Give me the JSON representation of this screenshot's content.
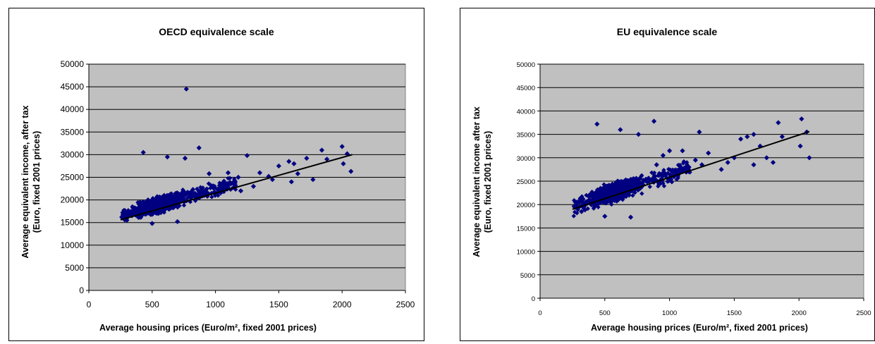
{
  "chart_data": [
    {
      "type": "scatter",
      "title": "OECD equivalence scale",
      "xlabel": "Average housing prices (Euro/m², fixed 2001 prices)",
      "ylabel_line1": "Average equivalent income, after tax",
      "ylabel_line2": "(Euro, fixed 2001 prices)",
      "xlim": [
        0,
        2500
      ],
      "ylim": [
        0,
        50000
      ],
      "xticks": [
        "0",
        "500",
        "1000",
        "1500",
        "2000",
        "2500"
      ],
      "yticks": [
        "0",
        "5000",
        "10000",
        "15000",
        "20000",
        "25000",
        "30000",
        "35000",
        "40000",
        "45000",
        "50000"
      ],
      "grid": true,
      "legend": "none",
      "marker_color": "#000080",
      "plot_bg": "#c0c0c0",
      "trendline": {
        "x": [
          250,
          2080
        ],
        "y": [
          15600,
          30000
        ]
      },
      "cluster": {
        "x_center": 560,
        "x_spread": 220,
        "y_slope": 7.8,
        "y_intercept": 14600,
        "y_spread": 2200
      },
      "series": [
        {
          "points": [
            [
              770,
              44500
            ],
            [
              430,
              30500
            ],
            [
              870,
              31500
            ],
            [
              620,
              29500
            ],
            [
              760,
              29200
            ],
            [
              1250,
              29800
            ],
            [
              1500,
              27500
            ],
            [
              1580,
              28500
            ],
            [
              1620,
              28000
            ],
            [
              1720,
              29200
            ],
            [
              1840,
              31000
            ],
            [
              1880,
              29000
            ],
            [
              2000,
              31800
            ],
            [
              2010,
              28000
            ],
            [
              2040,
              30200
            ],
            [
              2070,
              26300
            ],
            [
              1770,
              24500
            ],
            [
              1650,
              25800
            ],
            [
              1450,
              24500
            ],
            [
              1600,
              24000
            ],
            [
              1100,
              26000
            ],
            [
              950,
              25800
            ],
            [
              1180,
              25000
            ],
            [
              1350,
              26000
            ],
            [
              1420,
              25200
            ],
            [
              1300,
              23000
            ],
            [
              1050,
              23500
            ],
            [
              1150,
              22800
            ],
            [
              1200,
              22000
            ],
            [
              1000,
              21500
            ],
            [
              260,
              16200
            ],
            [
              300,
              15500
            ],
            [
              340,
              16500
            ],
            [
              500,
              14800
            ],
            [
              700,
              15200
            ]
          ]
        }
      ]
    },
    {
      "type": "scatter",
      "title": "EU equivalence scale",
      "xlabel": "Average housing prices (Euro/m², fixed 2001 prices)",
      "ylabel_line1": "Average equivalent income after tax",
      "ylabel_line2": "(Euro, fixed 2001 prices)",
      "xlim": [
        0,
        2500
      ],
      "ylim": [
        0,
        50000
      ],
      "xticks": [
        "0",
        "500",
        "1000",
        "1500",
        "2000",
        "2500"
      ],
      "yticks": [
        "0",
        "5000",
        "10000",
        "15000",
        "20000",
        "25000",
        "30000",
        "35000",
        "40000",
        "45000",
        "50000"
      ],
      "grid": true,
      "legend": "none",
      "marker_color": "#000080",
      "plot_bg": "#c0c0c0",
      "trendline": {
        "x": [
          250,
          2080
        ],
        "y": [
          19000,
          35600
        ]
      },
      "cluster": {
        "x_center": 580,
        "x_spread": 230,
        "y_slope": 9.0,
        "y_intercept": 17500,
        "y_spread": 2500
      },
      "series": [
        {
          "points": [
            [
              440,
              37200
            ],
            [
              620,
              36000
            ],
            [
              760,
              35000
            ],
            [
              880,
              37800
            ],
            [
              1230,
              35500
            ],
            [
              1650,
              35000
            ],
            [
              1700,
              32500
            ],
            [
              1550,
              34000
            ],
            [
              1600,
              34500
            ],
            [
              1840,
              37500
            ],
            [
              1870,
              34500
            ],
            [
              2020,
              38300
            ],
            [
              2010,
              32500
            ],
            [
              2060,
              35500
            ],
            [
              2080,
              30000
            ],
            [
              1800,
              29000
            ],
            [
              1750,
              30000
            ],
            [
              1650,
              28500
            ],
            [
              1500,
              30000
            ],
            [
              1450,
              29000
            ],
            [
              1100,
              31500
            ],
            [
              1300,
              31000
            ],
            [
              1200,
              29500
            ],
            [
              1000,
              31500
            ],
            [
              950,
              30500
            ],
            [
              1400,
              27500
            ],
            [
              1050,
              27000
            ],
            [
              1150,
              28000
            ],
            [
              1250,
              28500
            ],
            [
              900,
              28500
            ],
            [
              280,
              19500
            ],
            [
              320,
              18500
            ],
            [
              350,
              20500
            ],
            [
              500,
              17500
            ],
            [
              700,
              17300
            ]
          ]
        }
      ]
    }
  ]
}
